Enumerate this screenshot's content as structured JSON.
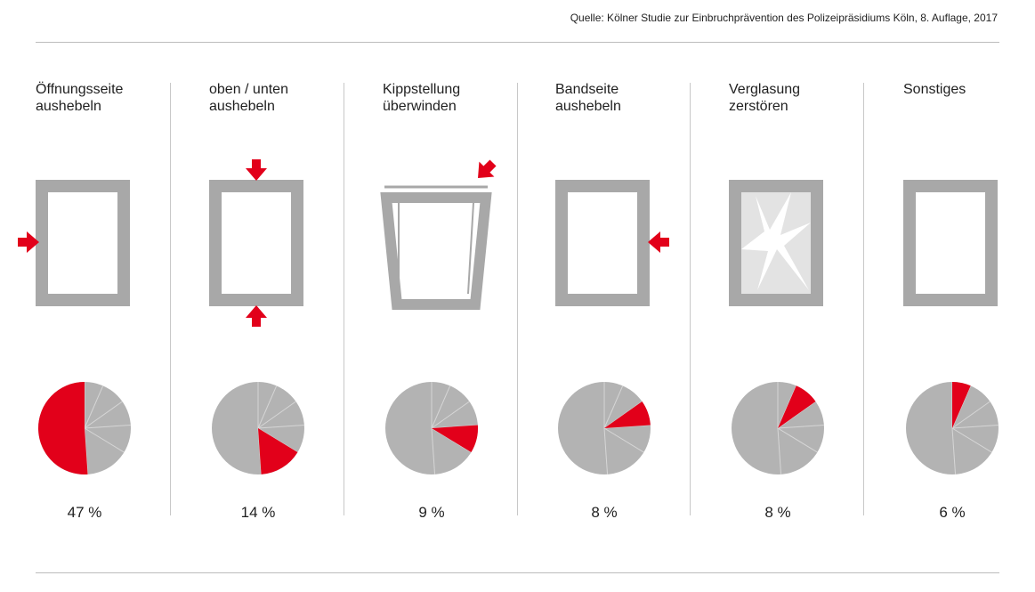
{
  "source": "Quelle: Kölner Studie zur Einbruchprävention des Polizeipräsidiums Köln, 8. Auflage, 2017",
  "colors": {
    "highlight": "#e2001a",
    "frame": "#a8a8a8",
    "pie": "#b3b3b3",
    "glass": "#e3e3e3"
  },
  "chart_data": {
    "type": "pie",
    "categories": [
      "Öffnungsseite aushebeln",
      "oben / unten aushebeln",
      "Kippstellung überwinden",
      "Bandseite aushebeln",
      "Verglasung zerstören",
      "Sonstiges"
    ],
    "values": [
      47,
      14,
      9,
      8,
      8,
      6
    ],
    "labels": [
      "47 %",
      "14 %",
      "9 %",
      "8 %",
      "8 %",
      "6 %"
    ],
    "icons": [
      "window-arrow-side-icon",
      "window-arrows-top-bottom-icon",
      "tilted-window-arrow-icon",
      "window-arrow-hinge-side-icon",
      "broken-glass-window-icon",
      "plain-window-icon"
    ]
  }
}
